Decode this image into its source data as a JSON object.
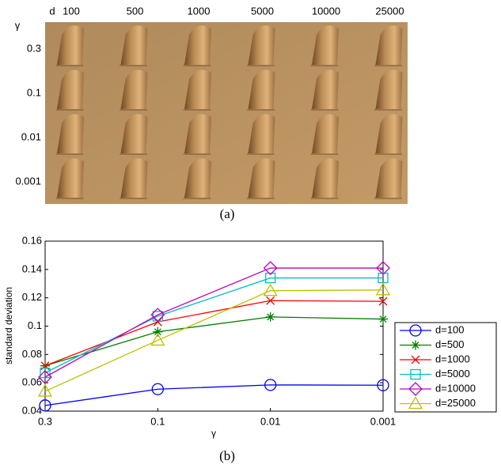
{
  "figure_a": {
    "d_label": "d",
    "gamma_label": "γ",
    "columns": [
      "100",
      "500",
      "1000",
      "5000",
      "10000",
      "25000"
    ],
    "rows": [
      "0.3",
      "0.1",
      "0.01",
      "0.001"
    ],
    "caption": "(a)"
  },
  "chart_data": {
    "type": "line",
    "xlabel": "γ",
    "ylabel": "standard deviation",
    "caption": "(b)",
    "categories": [
      "0.3",
      "0.1",
      "0.01",
      "0.001"
    ],
    "ylim": [
      0.04,
      0.16
    ],
    "yticks": [
      0.04,
      0.06,
      0.08,
      0.1,
      0.12,
      0.14,
      0.16
    ],
    "grid": false,
    "legend": "right",
    "series": [
      {
        "name": "d=100",
        "color": "#0000ff",
        "marker": "circle",
        "values": [
          0.044,
          0.0555,
          0.0585,
          0.0583
        ]
      },
      {
        "name": "d=500",
        "color": "#008000",
        "marker": "star",
        "values": [
          0.072,
          0.096,
          0.1065,
          0.105
        ]
      },
      {
        "name": "d=1000",
        "color": "#ff0000",
        "marker": "x",
        "values": [
          0.072,
          0.103,
          0.118,
          0.1175
        ]
      },
      {
        "name": "d=5000",
        "color": "#00bfbf",
        "marker": "square",
        "values": [
          0.067,
          0.107,
          0.134,
          0.134
        ]
      },
      {
        "name": "d=10000",
        "color": "#bf00bf",
        "marker": "diamond",
        "values": [
          0.064,
          0.108,
          0.141,
          0.141
        ]
      },
      {
        "name": "d=25000",
        "color": "#bfbf00",
        "marker": "triangle",
        "values": [
          0.054,
          0.09,
          0.125,
          0.1255
        ]
      }
    ]
  }
}
